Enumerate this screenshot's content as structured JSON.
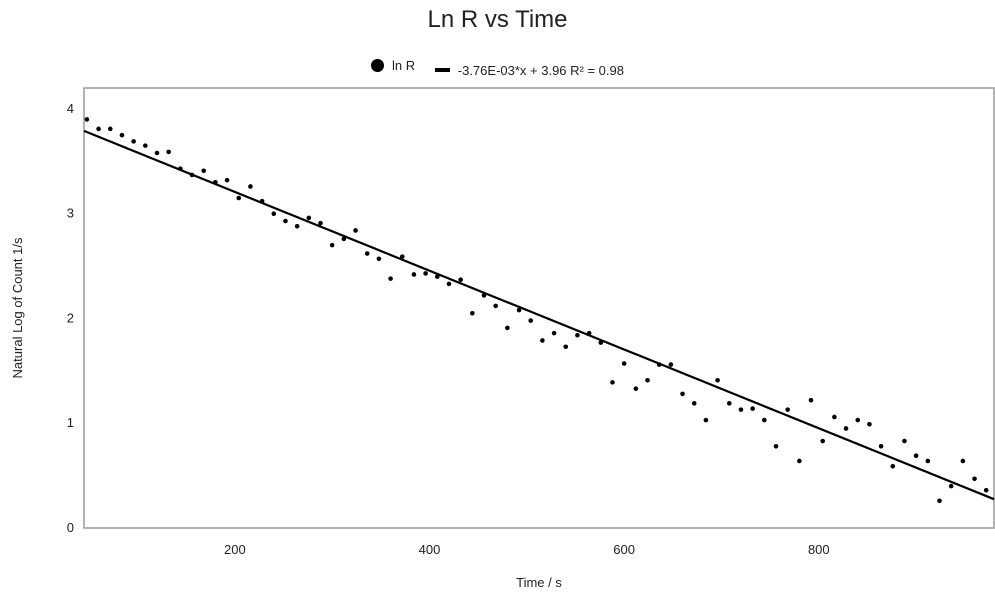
{
  "chart_data": {
    "type": "scatter",
    "title": "Ln R vs Time",
    "xlabel": "Time / s",
    "ylabel": "Natural Log of Count 1/s",
    "xlim": [
      45,
      980
    ],
    "ylim": [
      0,
      4.2
    ],
    "xticks": [
      200,
      400,
      600,
      800
    ],
    "yticks": [
      0,
      1,
      2,
      3,
      4
    ],
    "grid": false,
    "legend_position": "top",
    "series": [
      {
        "name": "ln R",
        "marker": "dot",
        "color": "#000000",
        "x": [
          48,
          60,
          72,
          84,
          96,
          108,
          120,
          132,
          144,
          156,
          168,
          180,
          192,
          204,
          216,
          228,
          240,
          252,
          264,
          276,
          288,
          300,
          312,
          324,
          336,
          348,
          360,
          372,
          384,
          396,
          408,
          420,
          432,
          444,
          456,
          468,
          480,
          492,
          504,
          516,
          528,
          540,
          552,
          564,
          576,
          588,
          600,
          612,
          624,
          636,
          648,
          660,
          672,
          684,
          696,
          708,
          720,
          732,
          744,
          756,
          768,
          780,
          792,
          804,
          816,
          828,
          840,
          852,
          864,
          876,
          888,
          900,
          912,
          924,
          936,
          948,
          960,
          972
        ],
        "y": [
          3.9,
          3.81,
          3.81,
          3.75,
          3.69,
          3.65,
          3.58,
          3.59,
          3.43,
          3.37,
          3.41,
          3.3,
          3.32,
          3.15,
          3.26,
          3.12,
          3.0,
          2.93,
          2.88,
          2.96,
          2.91,
          2.7,
          2.76,
          2.84,
          2.62,
          2.57,
          2.38,
          2.59,
          2.42,
          2.43,
          2.4,
          2.33,
          2.37,
          2.05,
          2.22,
          2.12,
          1.91,
          2.08,
          1.98,
          1.79,
          1.86,
          1.73,
          1.84,
          1.86,
          1.77,
          1.39,
          1.57,
          1.33,
          1.41,
          1.56,
          1.56,
          1.28,
          1.19,
          1.03,
          1.41,
          1.19,
          1.13,
          1.14,
          1.03,
          0.78,
          1.13,
          0.64,
          1.22,
          0.83,
          1.06,
          0.95,
          1.03,
          0.99,
          0.78,
          0.59,
          0.83,
          0.69,
          0.64,
          0.26,
          0.4,
          0.64,
          0.47,
          0.36
        ]
      },
      {
        "name": "-3.76E-03*x + 3.96 R² = 0.98",
        "type": "line",
        "color": "#000000",
        "slope": -0.00376,
        "intercept": 3.96
      }
    ]
  },
  "legend": {
    "scatter_label": "ln R",
    "trend_label": "-3.76E-03*x + 3.96 R² = 0.98"
  }
}
